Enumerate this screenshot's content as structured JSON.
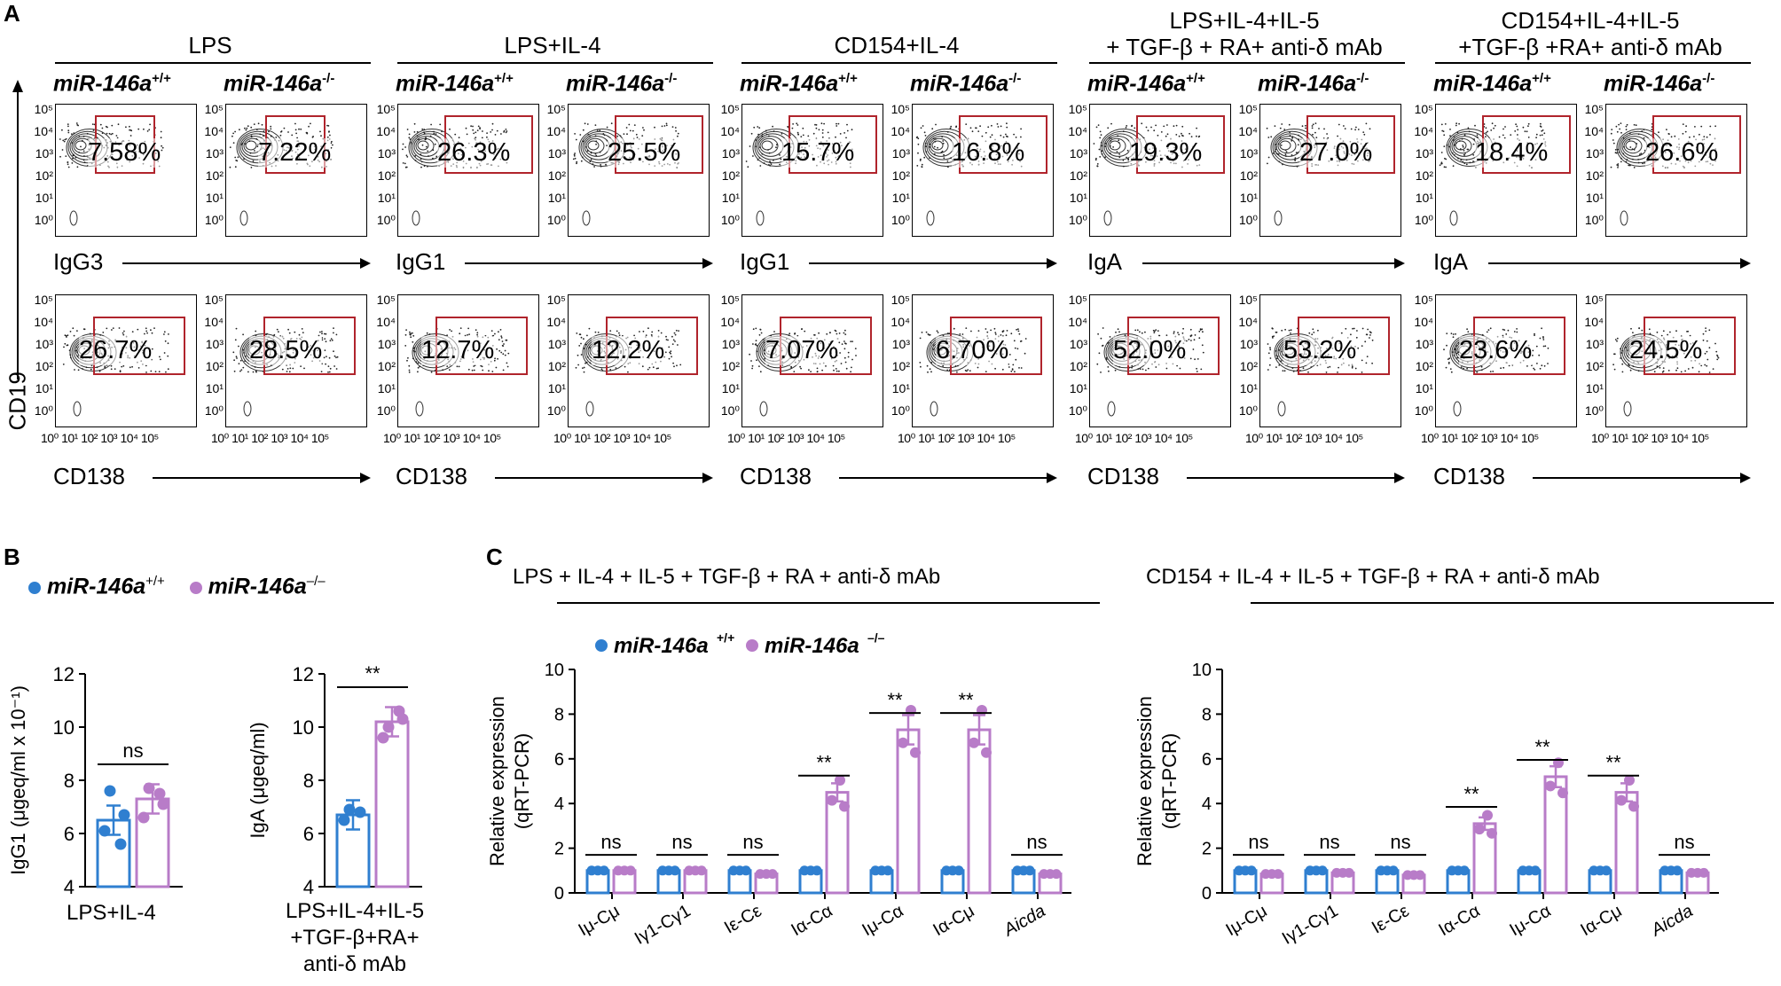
{
  "panels": {
    "a": "A",
    "b": "B",
    "c": "C"
  },
  "facs": {
    "genotypes": {
      "wt": "miR-146a",
      "wt_sup": "+/+",
      "ko": "miR-146a",
      "ko_sup": "-/-"
    },
    "y_axis_label": "CD19",
    "y_ticks": [
      "10⁵",
      "10⁴",
      "10³",
      "10²",
      "10¹",
      "10⁰"
    ],
    "x_ticks": "10⁰ 10¹ 10² 10³ 10⁴ 10⁵",
    "groups": [
      {
        "condition": "LPS",
        "top_axis": "IgG3",
        "bottom_axis": "CD138",
        "top_pct": [
          "7.58%",
          "7.22%"
        ],
        "bottom_pct": [
          "26.7%",
          "28.5%"
        ]
      },
      {
        "condition": "LPS+IL-4",
        "top_axis": "IgG1",
        "bottom_axis": "CD138",
        "top_pct": [
          "26.3%",
          "25.5%"
        ],
        "bottom_pct": [
          "12.7%",
          "12.2%"
        ]
      },
      {
        "condition": "CD154+IL-4",
        "top_axis": "IgG1",
        "bottom_axis": "CD138",
        "top_pct": [
          "15.7%",
          "16.8%"
        ],
        "bottom_pct": [
          "7.07%",
          "6.70%"
        ]
      },
      {
        "condition": "LPS+IL-4+IL-5",
        "condition2": "+ TGF-β + RA+ anti-δ mAb",
        "top_axis": "IgA",
        "bottom_axis": "CD138",
        "top_pct": [
          "19.3%",
          "27.0%"
        ],
        "bottom_pct": [
          "52.0%",
          "53.2%"
        ]
      },
      {
        "condition": "CD154+IL-4+IL-5",
        "condition2": "+TGF-β +RA+ anti-δ mAb",
        "top_axis": "IgA",
        "bottom_axis": "CD138",
        "top_pct": [
          "18.4%",
          "26.6%"
        ],
        "bottom_pct": [
          "23.6%",
          "24.5%"
        ]
      }
    ]
  },
  "legend": {
    "wt": "miR-146a",
    "wt_sup": "+/+",
    "ko": "miR-146a",
    "ko_sup": "–/–"
  },
  "colors": {
    "wt": "#2f7fd0",
    "ko": "#b87cc8",
    "gate": "#b0242c"
  },
  "chart_data": [
    {
      "type": "bar",
      "id": "B-IgG1",
      "title": "",
      "ylabel": "IgG1 (μgeq/ml x 10⁻¹)",
      "xlabel": "LPS+IL-4",
      "ylim": [
        4,
        12
      ],
      "yticks": [
        "4",
        "6",
        "8",
        "10",
        "12"
      ],
      "series": [
        {
          "name": "miR-146a+/+",
          "values": [
            6.5
          ],
          "points": [
            6.1,
            5.6,
            7.6,
            6.7
          ]
        },
        {
          "name": "miR-146a–/–",
          "values": [
            7.3
          ],
          "points": [
            6.6,
            7.5,
            7.7,
            7.1
          ]
        }
      ],
      "annotations": [
        "ns"
      ]
    },
    {
      "type": "bar",
      "id": "B-IgA",
      "title": "",
      "ylabel": "IgA (μgeq/ml)",
      "xlabel": [
        "LPS+IL-4+IL-5",
        "+TGF-β+RA+",
        "anti-δ mAb"
      ],
      "ylim": [
        4,
        12
      ],
      "yticks": [
        "4",
        "6",
        "8",
        "10",
        "12"
      ],
      "series": [
        {
          "name": "miR-146a+/+",
          "values": [
            6.7
          ],
          "points": [
            6.5,
            6.8,
            6.9
          ]
        },
        {
          "name": "miR-146a–/–",
          "values": [
            10.2
          ],
          "points": [
            9.6,
            10.6,
            10.0,
            10.3
          ]
        }
      ],
      "annotations": [
        "**"
      ]
    },
    {
      "type": "bar",
      "id": "C-LPS",
      "title": "LPS + IL-4 + IL-5 + TGF-β + RA + anti-δ mAb",
      "ylabel": [
        "Relative expression",
        "(qRT-PCR)"
      ],
      "ylim": [
        0,
        10
      ],
      "yticks": [
        "0",
        "2",
        "4",
        "6",
        "8",
        "10"
      ],
      "categories": [
        "Iμ-Cμ",
        "Iγ1-Cγ1",
        "Iε-Cε",
        "Iα-Cα",
        "Iμ-Cα",
        "Iα-Cμ",
        "Aicda"
      ],
      "series": [
        {
          "name": "miR-146a+/+",
          "values": [
            1.0,
            1.0,
            1.0,
            1.0,
            1.0,
            1.0,
            1.0
          ]
        },
        {
          "name": "miR-146a–/–",
          "values": [
            1.0,
            1.0,
            0.85,
            4.5,
            7.3,
            7.3,
            0.85
          ]
        }
      ],
      "annotations": [
        "ns",
        "ns",
        "ns",
        "**",
        "**",
        "**",
        "ns"
      ]
    },
    {
      "type": "bar",
      "id": "C-CD154",
      "title": "CD154 + IL-4 + IL-5 + TGF-β + RA + anti-δ mAb",
      "ylabel": [
        "Relative expression",
        "(qRT-PCR)"
      ],
      "ylim": [
        0,
        10
      ],
      "yticks": [
        "0",
        "2",
        "4",
        "6",
        "8",
        "10"
      ],
      "categories": [
        "Iμ-Cμ",
        "Iγ1-Cγ1",
        "Iε-Cε",
        "Iα-Cα",
        "Iμ-Cα",
        "Iα-Cμ",
        "Aicda"
      ],
      "series": [
        {
          "name": "miR-146a+/+",
          "values": [
            1.0,
            1.0,
            1.0,
            1.0,
            1.0,
            1.0,
            1.0
          ]
        },
        {
          "name": "miR-146a–/–",
          "values": [
            0.85,
            0.9,
            0.8,
            3.1,
            5.2,
            4.5,
            0.9
          ]
        }
      ],
      "annotations": [
        "ns",
        "ns",
        "ns",
        "**",
        "**",
        "**",
        "ns"
      ]
    }
  ]
}
